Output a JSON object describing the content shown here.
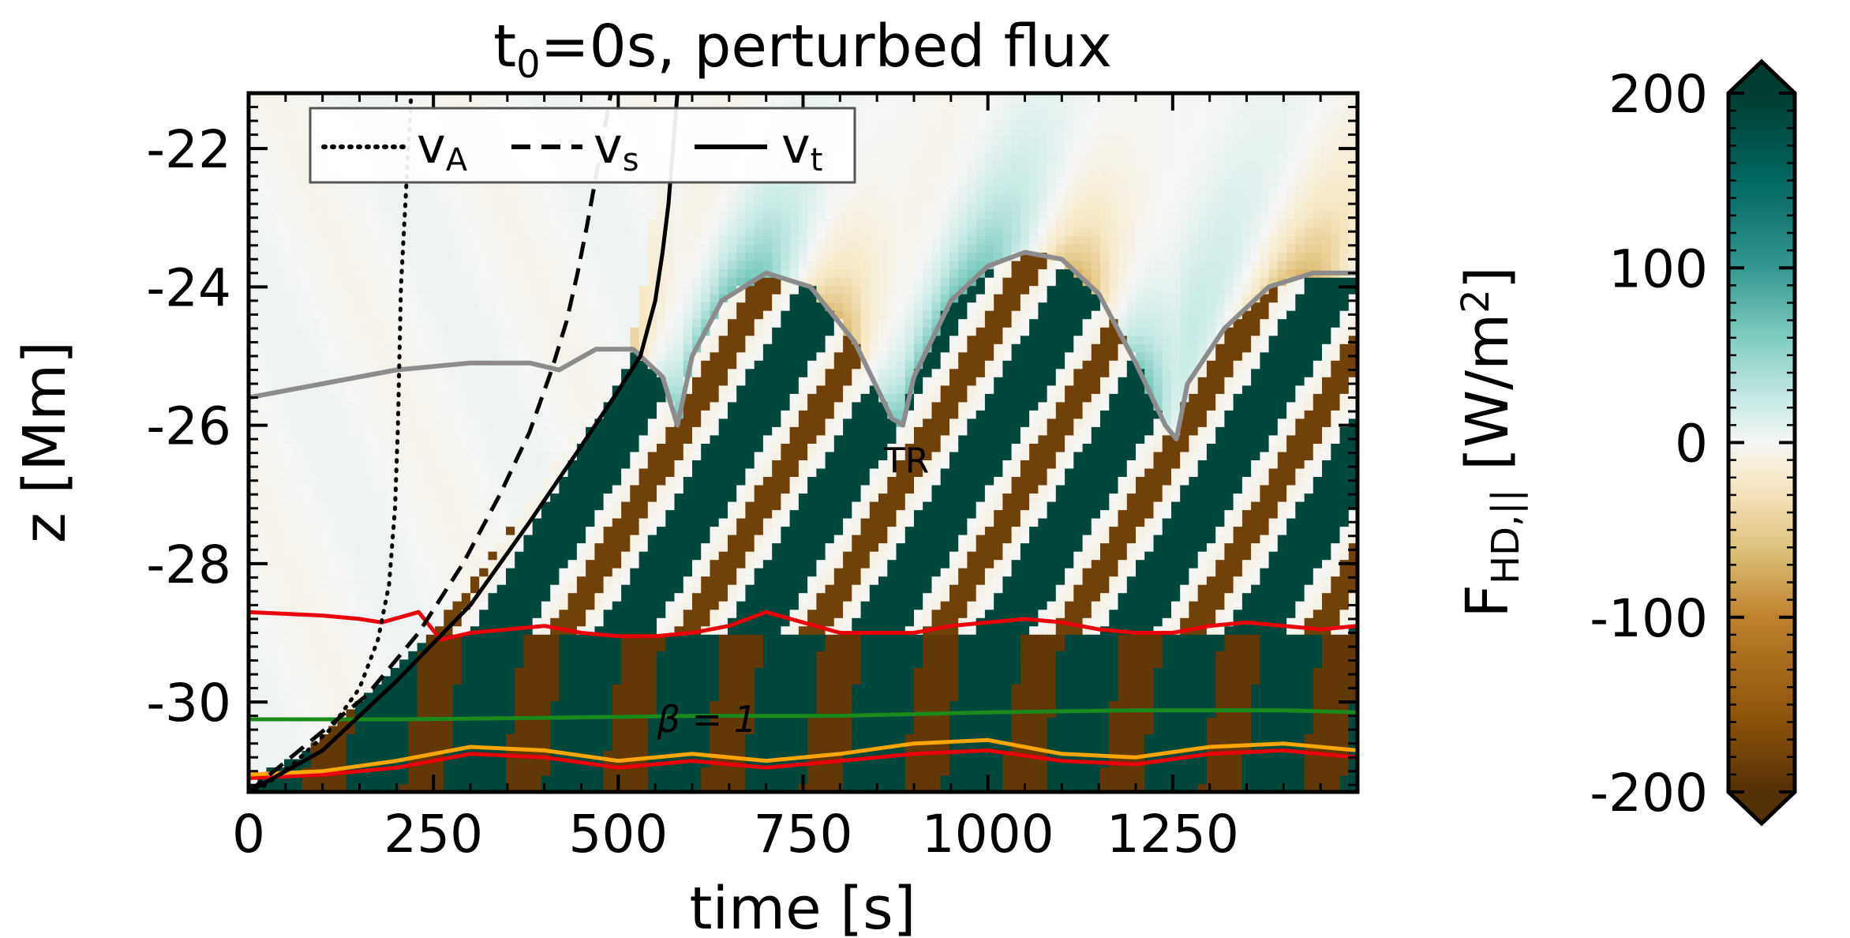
{
  "chart_data": {
    "type": "heatmap",
    "title": "t0=0s, perturbed flux",
    "title_parts": {
      "main": "t",
      "sub": "0",
      "rest": "=0s, perturbed flux"
    },
    "xlabel": "time [s]",
    "ylabel": "z [Mm]",
    "xlim": [
      0,
      1500
    ],
    "ylim": [
      -31.3,
      -21.2
    ],
    "xticks": [
      0,
      250,
      500,
      750,
      1000,
      1250
    ],
    "yticks": [
      -30,
      -28,
      -26,
      -24,
      -22
    ],
    "xtick_labels": [
      "0",
      "250",
      "500",
      "750",
      "1000",
      "1250"
    ],
    "ytick_labels": [
      "-30",
      "-28",
      "-26",
      "-24",
      "-22"
    ],
    "colorbar": {
      "label": "F_HD,|| [W/m^2]",
      "label_main": "F",
      "label_sub": "HD,||",
      "label_rest": " [W/m",
      "label_sup": "2",
      "label_end": "]",
      "range": [
        -200,
        200
      ],
      "ticks": [
        -200,
        -100,
        0,
        100,
        200
      ],
      "tick_labels": [
        "-200",
        "-100",
        "0",
        "100",
        "200"
      ],
      "extend": "both",
      "colors": [
        "#543005",
        "#8c510a",
        "#bf812d",
        "#dfc27d",
        "#f6e8c3",
        "#f5f5f5",
        "#c7eae5",
        "#80cdc1",
        "#35978f",
        "#01665e",
        "#003c30"
      ]
    },
    "legend": {
      "placement": "top-left",
      "entries": [
        {
          "label": "v",
          "sub": "A",
          "style": "dotted"
        },
        {
          "label": "v",
          "sub": "s",
          "style": "dashed"
        },
        {
          "label": "v",
          "sub": "t",
          "style": "solid"
        }
      ]
    },
    "annotations": [
      {
        "text": "TR",
        "x": 890,
        "y": -26.5,
        "color": "#808080"
      },
      {
        "text": "β = 1",
        "x": 620,
        "y": -30.25,
        "color": "#1a8a1a"
      }
    ],
    "series": [
      {
        "name": "v_A",
        "style": "dotted",
        "color": "#000000",
        "x": [
          10,
          60,
          110,
          150,
          175,
          190,
          198,
          202,
          206,
          220
        ],
        "y": [
          -31.3,
          -30.9,
          -30.4,
          -29.8,
          -29.1,
          -28.3,
          -27.2,
          -26.0,
          -24.0,
          -21.2
        ]
      },
      {
        "name": "v_s",
        "style": "dashed",
        "color": "#000000",
        "x": [
          0,
          80,
          160,
          230,
          290,
          340,
          380,
          410,
          430,
          445,
          458,
          470,
          480,
          490
        ],
        "y": [
          -31.3,
          -30.6,
          -29.9,
          -29.0,
          -28.0,
          -27.0,
          -26.1,
          -25.2,
          -24.5,
          -23.8,
          -23.1,
          -22.4,
          -21.8,
          -21.2
        ]
      },
      {
        "name": "v_t",
        "style": "solid",
        "color": "#000000",
        "x": [
          0,
          100,
          200,
          300,
          380,
          450,
          500,
          530,
          550,
          560,
          568,
          574,
          580
        ],
        "y": [
          -31.3,
          -30.7,
          -29.7,
          -28.6,
          -27.4,
          -26.3,
          -25.5,
          -25.0,
          -24.2,
          -23.5,
          -22.8,
          -22.0,
          -21.2
        ]
      },
      {
        "name": "transition region",
        "style": "solid",
        "color": "#8c8c8c",
        "x": [
          0,
          100,
          200,
          300,
          380,
          420,
          470,
          520,
          560,
          580,
          600,
          640,
          700,
          760,
          820,
          870,
          885,
          900,
          950,
          1000,
          1050,
          1100,
          1150,
          1200,
          1240,
          1255,
          1270,
          1320,
          1380,
          1440,
          1500
        ],
        "y": [
          -25.6,
          -25.4,
          -25.2,
          -25.1,
          -25.1,
          -25.2,
          -24.9,
          -24.9,
          -25.3,
          -26.0,
          -25.0,
          -24.2,
          -23.8,
          -24.0,
          -24.8,
          -25.9,
          -26.0,
          -25.3,
          -24.2,
          -23.7,
          -23.5,
          -23.6,
          -24.1,
          -25.1,
          -26.0,
          -26.2,
          -25.4,
          -24.6,
          -24.0,
          -23.8,
          -23.8
        ]
      },
      {
        "name": "lower contour red",
        "style": "solid",
        "color": "#e8000b",
        "x": [
          0,
          100,
          200,
          250,
          300,
          400,
          500,
          550,
          600,
          700,
          800,
          900,
          1000,
          1100,
          1200,
          1300,
          1400,
          1500
        ],
        "y": [
          -31.1,
          -31.05,
          -30.95,
          -30.85,
          -30.75,
          -30.8,
          -30.95,
          -30.9,
          -30.85,
          -30.95,
          -30.85,
          -30.75,
          -30.7,
          -30.85,
          -30.9,
          -30.75,
          -30.7,
          -30.8
        ]
      },
      {
        "name": "lower contour orange",
        "style": "solid",
        "color": "#ffa500",
        "x": [
          0,
          100,
          200,
          250,
          300,
          400,
          500,
          550,
          600,
          700,
          800,
          900,
          1000,
          1100,
          1200,
          1300,
          1400,
          1500
        ],
        "y": [
          -31.05,
          -31.0,
          -30.85,
          -30.75,
          -30.65,
          -30.7,
          -30.85,
          -30.8,
          -30.75,
          -30.85,
          -30.75,
          -30.6,
          -30.55,
          -30.75,
          -30.8,
          -30.65,
          -30.6,
          -30.7
        ]
      },
      {
        "name": "upper contour red",
        "style": "solid",
        "color": "#e8000b",
        "x": [
          0,
          100,
          150,
          180,
          230,
          260,
          300,
          350,
          400,
          450,
          500,
          550,
          600,
          650,
          700,
          750,
          800,
          850,
          900,
          950,
          1000,
          1050,
          1100,
          1150,
          1200,
          1250,
          1300,
          1350,
          1400,
          1450,
          1500
        ],
        "y": [
          -28.7,
          -28.75,
          -28.8,
          -28.85,
          -28.7,
          -29.1,
          -29.0,
          -28.95,
          -28.9,
          -29.0,
          -29.05,
          -29.05,
          -29.0,
          -28.9,
          -28.7,
          -28.85,
          -29.0,
          -29.0,
          -29.0,
          -28.9,
          -28.85,
          -28.8,
          -28.85,
          -28.95,
          -29.0,
          -29.0,
          -28.9,
          -28.85,
          -28.9,
          -28.95,
          -28.9
        ]
      },
      {
        "name": "beta=1",
        "style": "solid",
        "color": "#1a8a1a",
        "x": [
          0,
          200,
          400,
          600,
          800,
          1000,
          1200,
          1400,
          1500
        ],
        "y": [
          -30.25,
          -30.25,
          -30.23,
          -30.2,
          -30.2,
          -30.15,
          -30.12,
          -30.12,
          -30.15
        ]
      }
    ]
  }
}
